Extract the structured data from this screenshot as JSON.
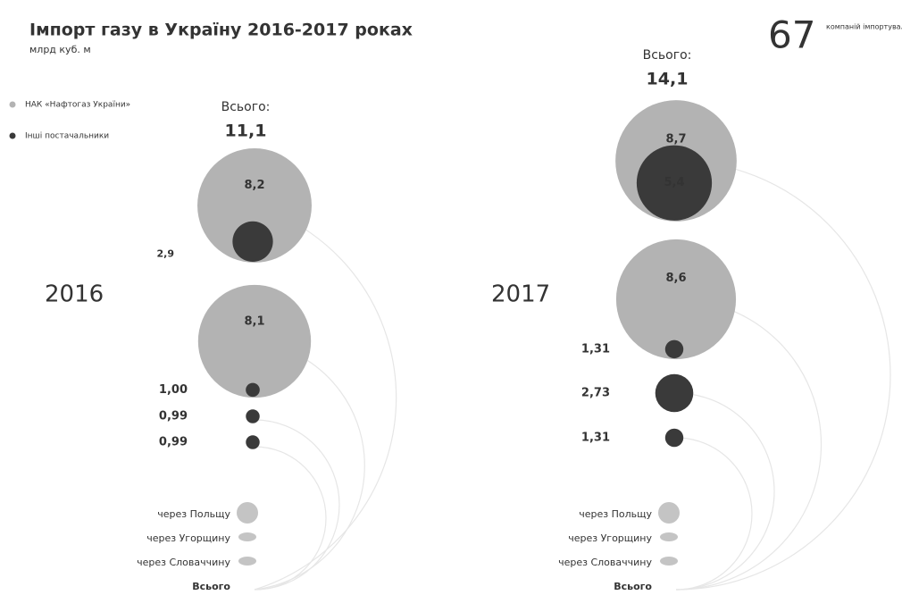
{
  "title": "Імпорт газу в Україну 2016-2017 роках",
  "subtitle": "млрд куб. м",
  "legend": [
    {
      "name": "НАК «Нафтогаз України»",
      "color": "#b3b3b3"
    },
    {
      "name": "Інші постачальники",
      "color": "#3a3a3a"
    }
  ],
  "badge": {
    "number": "67",
    "text": "компаній імпортували газ в Україну"
  },
  "panels": [
    {
      "year": "2016",
      "total_label": "Всього:",
      "total": "11,1",
      "rows": [
        {
          "naftogaz": 8.2,
          "naftogaz_label": "8,2",
          "others": 2.9,
          "others_label": "2,9"
        },
        {
          "naftogaz": 8.1,
          "naftogaz_label": "8,1",
          "others": 1.0,
          "others_label": "1,00"
        },
        {
          "others": 0.99,
          "others_label": "0,99"
        },
        {
          "others": 0.99,
          "others_label": "0,99"
        }
      ],
      "routes": [
        "через Польщу",
        "через Угорщину",
        "через Словаччину",
        "Всього"
      ]
    },
    {
      "year": "2017",
      "total_label": "Всього:",
      "total": "14,1",
      "rows": [
        {
          "naftogaz": 8.7,
          "naftogaz_label": "8,7",
          "others": 5.4,
          "others_label": "5,4"
        },
        {
          "naftogaz": 8.6,
          "naftogaz_label": "8,6",
          "others": 1.31,
          "others_label": "1,31"
        },
        {
          "others": 2.73,
          "others_label": "2,73"
        },
        {
          "others": 1.31,
          "others_label": "1,31"
        }
      ],
      "routes": [
        "через Польщу",
        "через Угорщину",
        "через Словаччину",
        "Всього"
      ]
    }
  ]
}
